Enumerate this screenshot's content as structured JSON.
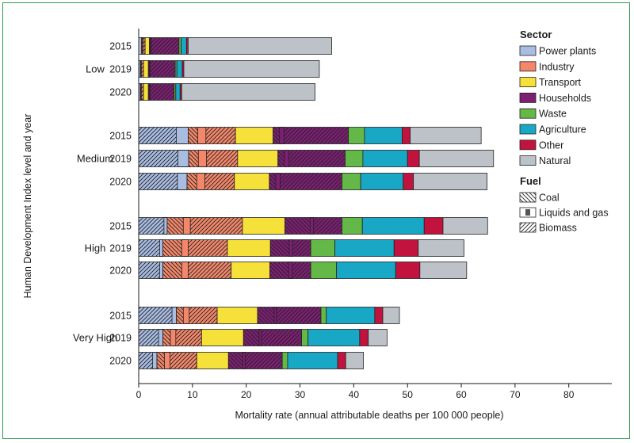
{
  "chart_data": {
    "type": "bar",
    "orientation": "horizontal",
    "stacked": true,
    "xlabel": "Mortality rate (annual attributable deaths per 100 000 people)",
    "ylabel": "Human Development Index level and year",
    "xlim": [
      0,
      88
    ],
    "xticks": [
      0,
      10,
      20,
      30,
      40,
      50,
      60,
      70,
      80
    ],
    "groups": [
      {
        "name": "Low",
        "bars": [
          {
            "year": "2015",
            "values": [
              0.5,
              0.7,
              0.8,
              5.5,
              0.4,
              1.0,
              0.3,
              26.7
            ],
            "fuel": {
              "ind": [
                0.15,
                0.15,
                0.4
              ],
              "hh": [
                0.2,
                0.1,
                5.2
              ]
            }
          },
          {
            "year": "2019",
            "values": [
              0.3,
              0.6,
              0.9,
              5.0,
              0.3,
              1.0,
              0.3,
              25.2
            ],
            "fuel": {
              "ind": [
                0.1,
                0.1,
                0.4
              ],
              "hh": [
                0.2,
                0.1,
                4.7
              ]
            }
          },
          {
            "year": "2020",
            "values": [
              0.3,
              0.6,
              0.9,
              4.8,
              0.3,
              0.8,
              0.3,
              24.8
            ],
            "fuel": {
              "ind": [
                0.1,
                0.1,
                0.4
              ],
              "hh": [
                0.2,
                0.1,
                4.5
              ]
            }
          }
        ]
      },
      {
        "name": "Medium",
        "bars": [
          {
            "year": "2015",
            "values": [
              9.2,
              8.8,
              7.0,
              14.0,
              3.0,
              7.0,
              1.5,
              13.2
            ],
            "fuel": {
              "pp": [
                7.0,
                2.2
              ],
              "ind": [
                1.8,
                1.5,
                5.5
              ],
              "hh": [
                1.2,
                0.8,
                12.0
              ]
            }
          },
          {
            "year": "2019",
            "values": [
              9.3,
              9.1,
              7.5,
              12.5,
              3.3,
              8.3,
              2.2,
              13.8
            ],
            "fuel": {
              "pp": [
                7.3,
                2.0
              ],
              "ind": [
                1.8,
                1.5,
                5.8
              ],
              "hh": [
                1.2,
                0.8,
                10.5
              ]
            }
          },
          {
            "year": "2020",
            "values": [
              9.0,
              8.8,
              6.5,
              13.5,
              3.5,
              7.9,
              1.9,
              13.7
            ],
            "fuel": {
              "pp": [
                7.2,
                1.8
              ],
              "ind": [
                1.8,
                1.5,
                5.5
              ],
              "hh": [
                1.2,
                0.8,
                11.5
              ]
            }
          }
        ]
      },
      {
        "name": "High",
        "bars": [
          {
            "year": "2015",
            "values": [
              5.3,
              14.0,
              7.9,
              10.6,
              3.8,
              11.5,
              3.5,
              8.3
            ],
            "fuel": {
              "pp": [
                4.7,
                0.6
              ],
              "ind": [
                3.0,
                1.3,
                9.7
              ],
              "hh": [
                4.7,
                0.6,
                5.3
              ]
            }
          },
          {
            "year": "2019",
            "values": [
              4.5,
              12.0,
              8.0,
              7.5,
              4.5,
              11.0,
              4.5,
              8.5
            ],
            "fuel": {
              "pp": [
                3.9,
                0.6
              ],
              "ind": [
                3.5,
                1.2,
                7.3
              ],
              "hh": [
                3.5,
                0.6,
                3.4
              ]
            }
          },
          {
            "year": "2020",
            "values": [
              4.5,
              12.7,
              7.2,
              7.6,
              4.8,
              11.0,
              4.5,
              8.7
            ],
            "fuel": {
              "pp": [
                3.9,
                0.6
              ],
              "ind": [
                3.5,
                1.2,
                8.0
              ],
              "hh": [
                3.5,
                0.6,
                3.5
              ]
            }
          }
        ]
      },
      {
        "name": "Very High",
        "bars": [
          {
            "year": "2015",
            "values": [
              7.0,
              7.6,
              7.5,
              11.8,
              1.0,
              9.0,
              1.5,
              3.1
            ],
            "fuel": {
              "pp": [
                6.2,
                0.8
              ],
              "ind": [
                1.3,
                1.1,
                5.2
              ],
              "hh": [
                3.1,
                0.4,
                8.3
              ]
            }
          },
          {
            "year": "2019",
            "values": [
              4.5,
              7.2,
              7.8,
              10.8,
              1.2,
              9.6,
              1.6,
              3.5
            ],
            "fuel": {
              "pp": [
                3.7,
                0.8
              ],
              "ind": [
                1.4,
                1.0,
                4.8
              ],
              "hh": [
                2.9,
                0.4,
                7.5
              ]
            }
          },
          {
            "year": "2020",
            "values": [
              3.4,
              7.4,
              5.9,
              10.0,
              1.0,
              9.3,
              1.5,
              3.3
            ],
            "fuel": {
              "pp": [
                2.6,
                0.8
              ],
              "ind": [
                1.4,
                1.0,
                5.0
              ],
              "hh": [
                2.7,
                0.4,
                6.9
              ]
            }
          }
        ]
      }
    ],
    "legend": {
      "placement": "right",
      "sector_title": "Sector",
      "sectors": [
        {
          "name": "Power plants",
          "color": "#a9bde3"
        },
        {
          "name": "Industry",
          "color": "#f4876a"
        },
        {
          "name": "Transport",
          "color": "#f5e13a"
        },
        {
          "name": "Households",
          "color": "#7d1f73"
        },
        {
          "name": "Waste",
          "color": "#64b847"
        },
        {
          "name": "Agriculture",
          "color": "#19a7c6"
        },
        {
          "name": "Other",
          "color": "#c2133f"
        },
        {
          "name": "Natural",
          "color": "#bcc2c8"
        }
      ],
      "fuel_title": "Fuel",
      "fuels": [
        {
          "name": "Coal",
          "pattern": "coal"
        },
        {
          "name": "Liquids and gas",
          "pattern": "liquids"
        },
        {
          "name": "Biomass",
          "pattern": "biomass"
        }
      ]
    },
    "frame_color": "#2e9a52"
  }
}
